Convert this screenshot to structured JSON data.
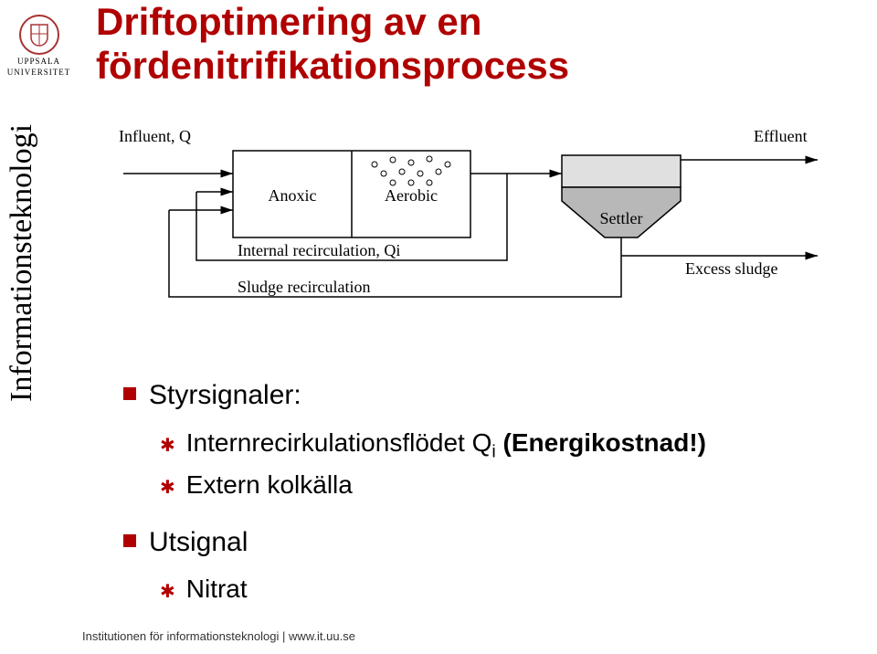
{
  "title_line1": "Driftoptimering av en",
  "title_line2": "fördenitrifikationsprocess",
  "title_color": "#b00000",
  "sidebar_text": "Informationsteknologi",
  "logo": {
    "line1": "UPPSALA",
    "line2": "UNIVERSITET",
    "crest_color": "#a83232"
  },
  "diagram": {
    "influent": "Influent, Q",
    "effluent": "Effluent",
    "anoxic": "Anoxic",
    "aerobic": "Aerobic",
    "internal_recirc": "Internal recirculation, Qi",
    "sludge_recirc": "Sludge recirculation",
    "settler": "Settler",
    "excess_sludge": "Excess sludge",
    "label_font": "Times New Roman",
    "label_size": 18,
    "line_color": "#000000",
    "line_width": 1.5,
    "tank_fill": "#ffffff",
    "settler_top_fill": "#e0e0e0",
    "settler_bottom_fill": "#b8b8b8",
    "bubble_color": "#000000"
  },
  "bullets": {
    "accent_color": "#b00000",
    "items": [
      {
        "label": "Styrsignaler:",
        "sub": [
          {
            "html": "Internrecirkulationsflödet Q<sub>i</sub> <b>(Energikostnad!)</b>"
          },
          {
            "html": "Extern kolkälla"
          }
        ]
      },
      {
        "label": "Utsignal",
        "sub": [
          {
            "html": "Nitrat"
          }
        ]
      }
    ]
  },
  "footer": "Institutionen för informationsteknologi | www.it.uu.se"
}
